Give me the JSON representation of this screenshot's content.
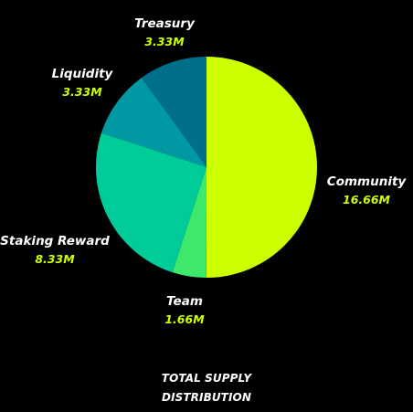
{
  "chart_data": {
    "type": "pie",
    "start_angle_deg": 0,
    "direction": "clockwise",
    "title_lines": [
      "TOTAL SUPPLY",
      "DISTRIBUTION"
    ],
    "slices": [
      {
        "name": "Community",
        "value": 16.66,
        "value_label": "16.66M",
        "color": "#ccff00"
      },
      {
        "name": "Team",
        "value": 1.66,
        "value_label": "1.66M",
        "color": "#3ee86a"
      },
      {
        "name": "Staking Reward",
        "value": 8.33,
        "value_label": "8.33M",
        "color": "#00cc99"
      },
      {
        "name": "Liquidity",
        "value": 3.33,
        "value_label": "3.33M",
        "color": "#0099a3"
      },
      {
        "name": "Treasury",
        "value": 3.33,
        "value_label": "3.33M",
        "color": "#00708a"
      }
    ],
    "value_label_color": "#ccff00",
    "name_label_color": "#ffffff"
  }
}
